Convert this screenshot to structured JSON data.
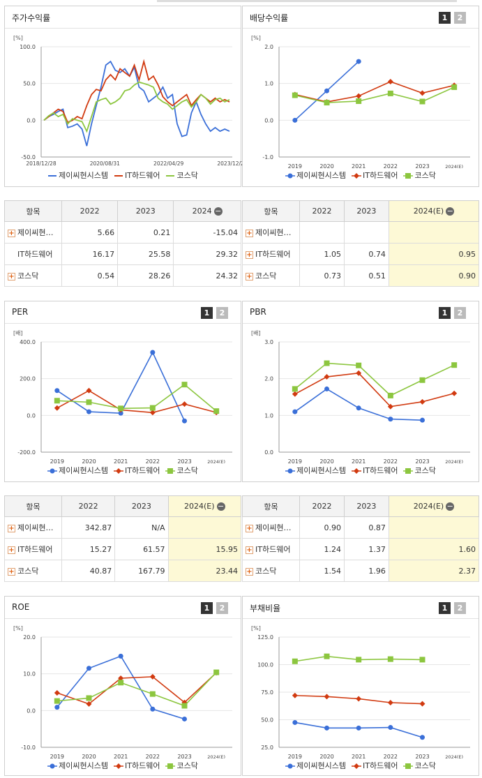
{
  "legend": {
    "s1": "제이씨현시스템",
    "s2": "IT하드웨어",
    "s3": "코스닥"
  },
  "colors": {
    "s1": "#3a6fd8",
    "s2": "#d13a10",
    "s3": "#8cc63f"
  },
  "pages": {
    "p1": "1",
    "p2": "2"
  },
  "panels": {
    "stock": {
      "title": "주가수익률",
      "chart_data": {
        "type": "line",
        "unit": "[%]",
        "ylim": [
          -50,
          100
        ],
        "yticks": [
          "100.0",
          "50.0",
          "0.0",
          "-50.0"
        ],
        "xticks": [
          "2018/12/28",
          "2020/08/31",
          "2022/04/29",
          "2023/12/28"
        ],
        "series": [
          {
            "name": "제이씨현시스템",
            "values": [
              0,
              5,
              8,
              12,
              15,
              -10,
              -8,
              -5,
              -12,
              -35,
              -5,
              20,
              45,
              75,
              80,
              68,
              65,
              70,
              60,
              72,
              45,
              40,
              25,
              30,
              35,
              45,
              30,
              35,
              -5,
              -22,
              -20,
              10,
              25,
              8,
              -5,
              -15,
              -10,
              -15,
              -12,
              -15
            ]
          },
          {
            "name": "IT하드웨어",
            "values": [
              0,
              5,
              10,
              15,
              12,
              -3,
              0,
              5,
              2,
              20,
              35,
              42,
              40,
              55,
              62,
              55,
              70,
              65,
              60,
              75,
              55,
              80,
              55,
              60,
              48,
              32,
              25,
              20,
              25,
              30,
              35,
              20,
              28,
              35,
              30,
              25,
              30,
              25,
              28,
              25
            ]
          },
          {
            "name": "코스닥",
            "values": [
              0,
              6,
              10,
              5,
              8,
              -5,
              2,
              0,
              -2,
              -15,
              5,
              25,
              28,
              30,
              22,
              25,
              30,
              40,
              42,
              48,
              52,
              50,
              48,
              45,
              30,
              25,
              22,
              15,
              20,
              25,
              28,
              18,
              25,
              35,
              30,
              22,
              28,
              30,
              25,
              28
            ]
          }
        ]
      }
    },
    "dividend": {
      "title": "배당수익률",
      "chart_data": {
        "type": "line",
        "unit": "[%]",
        "ylim": [
          -1,
          2
        ],
        "yticks": [
          "2.0",
          "1.0",
          "0.0",
          "-1.0"
        ],
        "categories": [
          "2019",
          "2020",
          "2021",
          "2022",
          "2023",
          "2024(E)"
        ],
        "series": [
          {
            "name": "제이씨현시스템",
            "values": [
              0.0,
              0.8,
              1.6,
              null,
              null,
              null
            ]
          },
          {
            "name": "IT하드웨어",
            "values": [
              0.7,
              0.5,
              0.66,
              1.05,
              0.74,
              0.95
            ]
          },
          {
            "name": "코스닥",
            "values": [
              0.68,
              0.48,
              0.52,
              0.73,
              0.51,
              0.9
            ]
          }
        ]
      }
    },
    "per": {
      "title": "PER",
      "chart_data": {
        "type": "line",
        "unit": "[배]",
        "ylim": [
          -200,
          400
        ],
        "yticks": [
          "400.0",
          "200.0",
          "0.0",
          "-200.0"
        ],
        "categories": [
          "2019",
          "2020",
          "2021",
          "2022",
          "2023",
          "2024(E)"
        ],
        "series": [
          {
            "name": "제이씨현시스템",
            "values": [
              135,
              20,
              12,
              342.87,
              -30,
              null
            ]
          },
          {
            "name": "IT하드웨어",
            "values": [
              40,
              135,
              30,
              15.27,
              61.57,
              15.95
            ]
          },
          {
            "name": "코스닥",
            "values": [
              80,
              72,
              38,
              40.87,
              167.79,
              23.44
            ]
          }
        ]
      }
    },
    "pbr": {
      "title": "PBR",
      "chart_data": {
        "type": "line",
        "unit": "[배]",
        "ylim": [
          0,
          3
        ],
        "yticks": [
          "3.0",
          "2.0",
          "1.0",
          "0.0"
        ],
        "categories": [
          "2019",
          "2020",
          "2021",
          "2022",
          "2023",
          "2024(E)"
        ],
        "series": [
          {
            "name": "제이씨현시스템",
            "values": [
              1.1,
              1.72,
              1.2,
              0.9,
              0.87,
              null
            ]
          },
          {
            "name": "IT하드웨어",
            "values": [
              1.58,
              2.05,
              2.15,
              1.24,
              1.37,
              1.6
            ]
          },
          {
            "name": "코스닥",
            "values": [
              1.72,
              2.42,
              2.36,
              1.54,
              1.96,
              2.37
            ]
          }
        ]
      }
    },
    "roe": {
      "title": "ROE",
      "chart_data": {
        "type": "line",
        "unit": "[%]",
        "ylim": [
          -10,
          20
        ],
        "yticks": [
          "20.0",
          "10.0",
          "0.0",
          "-10.0"
        ],
        "categories": [
          "2019",
          "2020",
          "2021",
          "2022",
          "2023",
          "2024(E)"
        ],
        "series": [
          {
            "name": "제이씨현시스템",
            "values": [
              0.9,
              11.5,
              14.8,
              0.4,
              -2.3,
              null
            ]
          },
          {
            "name": "IT하드웨어",
            "values": [
              4.8,
              1.8,
              8.8,
              9.2,
              2.2,
              10.3
            ]
          },
          {
            "name": "코스닥",
            "values": [
              2.6,
              3.4,
              7.6,
              4.5,
              1.3,
              10.4
            ]
          }
        ]
      }
    },
    "debt": {
      "title": "부채비율",
      "chart_data": {
        "type": "line",
        "unit": "[%]",
        "ylim": [
          25,
          125
        ],
        "yticks": [
          "125.0",
          "100.0",
          "75.0",
          "50.0",
          "25.0"
        ],
        "categories": [
          "2019",
          "2020",
          "2021",
          "2022",
          "2023",
          "2024(E)"
        ],
        "series": [
          {
            "name": "제이씨현시스템",
            "values": [
              47.5,
              42.5,
              42.5,
              43,
              34,
              null
            ]
          },
          {
            "name": "IT하드웨어",
            "values": [
              72,
              71,
              69,
              65.5,
              64.5,
              null
            ]
          },
          {
            "name": "코스닥",
            "values": [
              103,
              107.5,
              104.5,
              105,
              104.5,
              null
            ]
          }
        ]
      }
    }
  },
  "tables": {
    "stock": {
      "headers": [
        "항목",
        "2022",
        "2023",
        "2024"
      ],
      "rows": [
        {
          "name": "제이씨현…",
          "v": [
            "5.66",
            "0.21",
            "-15.04"
          ]
        },
        {
          "name": "IT하드웨어",
          "v": [
            "16.17",
            "25.58",
            "29.32"
          ]
        },
        {
          "name": "코스닥",
          "v": [
            "0.54",
            "28.26",
            "24.32"
          ]
        }
      ]
    },
    "dividend": {
      "headers": [
        "항목",
        "2022",
        "2023",
        "2024(E)"
      ],
      "rows": [
        {
          "name": "제이씨현…",
          "v": [
            "",
            "",
            ""
          ]
        },
        {
          "name": "IT하드웨어",
          "v": [
            "1.05",
            "0.74",
            "0.95"
          ]
        },
        {
          "name": "코스닥",
          "v": [
            "0.73",
            "0.51",
            "0.90"
          ]
        }
      ]
    },
    "per": {
      "headers": [
        "항목",
        "2022",
        "2023",
        "2024(E)"
      ],
      "rows": [
        {
          "name": "제이씨현…",
          "v": [
            "342.87",
            "N/A",
            ""
          ]
        },
        {
          "name": "IT하드웨어",
          "v": [
            "15.27",
            "61.57",
            "15.95"
          ]
        },
        {
          "name": "코스닥",
          "v": [
            "40.87",
            "167.79",
            "23.44"
          ]
        }
      ]
    },
    "pbr": {
      "headers": [
        "항목",
        "2022",
        "2023",
        "2024(E)"
      ],
      "rows": [
        {
          "name": "제이씨현…",
          "v": [
            "0.90",
            "0.87",
            ""
          ]
        },
        {
          "name": "IT하드웨어",
          "v": [
            "1.24",
            "1.37",
            "1.60"
          ]
        },
        {
          "name": "코스닥",
          "v": [
            "1.54",
            "1.96",
            "2.37"
          ]
        }
      ]
    }
  }
}
